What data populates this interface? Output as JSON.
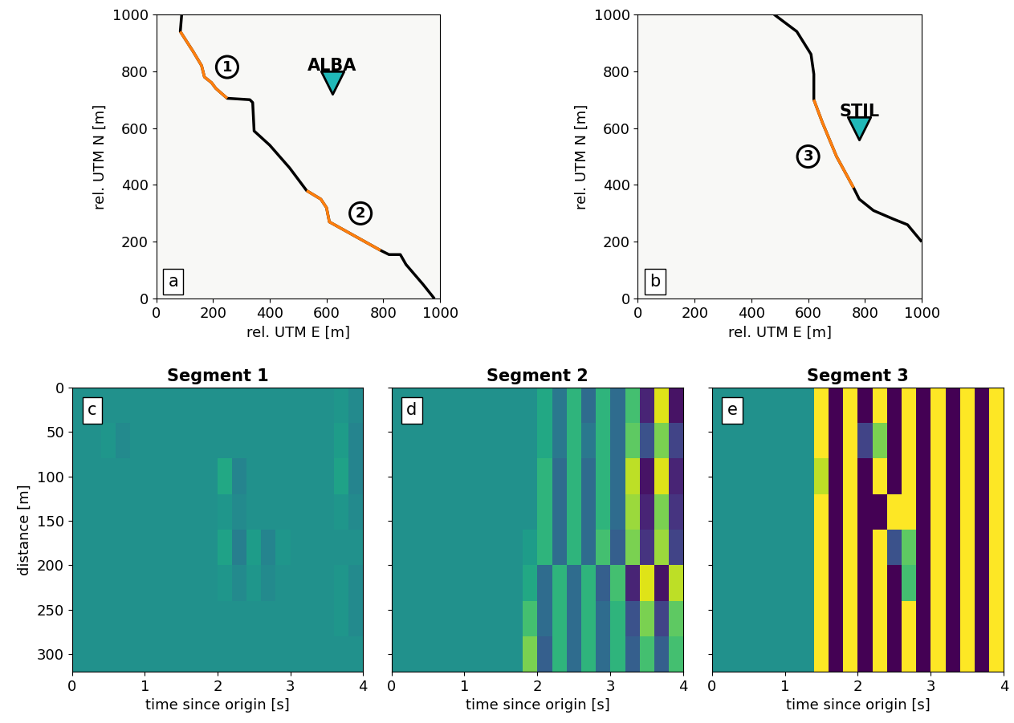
{
  "chart_data": [
    {
      "type": "map",
      "panel": "a",
      "xlabel": "rel. UTM E [m]",
      "ylabel": "rel. UTM N [m]",
      "xlim": [
        0,
        1000
      ],
      "ylim": [
        0,
        1000
      ],
      "xticks": [
        0,
        200,
        400,
        600,
        800,
        1000
      ],
      "yticks": [
        0,
        200,
        400,
        600,
        800,
        1000
      ],
      "series": [
        {
          "color": "#000000",
          "x": [
            90,
            85,
            130,
            160,
            170,
            195,
            210,
            250,
            330,
            340,
            345,
            400,
            470,
            530,
            580,
            600,
            610,
            700,
            790,
            820,
            860,
            880,
            940,
            980
          ],
          "y": [
            1000,
            940,
            870,
            820,
            780,
            760,
            740,
            705,
            700,
            690,
            590,
            540,
            460,
            380,
            350,
            320,
            270,
            220,
            170,
            155,
            155,
            120,
            50,
            0
          ]
        },
        {
          "color": "#ff7f0e",
          "x": [
            85,
            130,
            160,
            170,
            195,
            210,
            250
          ],
          "y": [
            940,
            870,
            820,
            780,
            760,
            740,
            705
          ]
        },
        {
          "color": "#ff7f0e",
          "x": [
            530,
            580,
            600,
            610,
            700,
            790
          ],
          "y": [
            380,
            350,
            320,
            270,
            220,
            170
          ]
        }
      ],
      "stations": [
        {
          "label": "ALBA",
          "x": 620,
          "y": 760,
          "color": "#20b8b8"
        }
      ],
      "segment_labels": [
        {
          "label": "1",
          "x": 250,
          "y": 815
        },
        {
          "label": "2",
          "x": 720,
          "y": 300
        }
      ]
    },
    {
      "type": "map",
      "panel": "b",
      "xlabel": "rel. UTM E [m]",
      "ylabel": "rel. UTM N [m]",
      "xlim": [
        0,
        1000
      ],
      "ylim": [
        0,
        1000
      ],
      "xticks": [
        0,
        200,
        400,
        600,
        800,
        1000
      ],
      "yticks": [
        0,
        200,
        400,
        600,
        800,
        1000
      ],
      "series": [
        {
          "color": "#000000",
          "x": [
            480,
            560,
            610,
            620,
            620,
            650,
            700,
            760,
            780,
            830,
            900,
            950,
            1000
          ],
          "y": [
            1000,
            940,
            860,
            790,
            700,
            620,
            500,
            390,
            350,
            310,
            280,
            260,
            200
          ]
        },
        {
          "color": "#ff7f0e",
          "x": [
            620,
            650,
            700,
            760
          ],
          "y": [
            700,
            620,
            500,
            390
          ]
        }
      ],
      "stations": [
        {
          "label": "STIL",
          "x": 780,
          "y": 600,
          "color": "#20b8b8"
        }
      ],
      "segment_labels": [
        {
          "label": "3",
          "x": 600,
          "y": 500
        }
      ]
    },
    {
      "type": "heatmap",
      "panel": "c",
      "title": "Segment 1",
      "xlabel": "time since origin [s]",
      "ylabel": "distance [m]",
      "xlim": [
        0,
        4
      ],
      "ylim": [
        320,
        0
      ],
      "xticks": [
        0,
        1,
        2,
        3,
        4
      ],
      "yticks": [
        0,
        50,
        100,
        150,
        200,
        250,
        300
      ],
      "x_edges": [
        0,
        0.2,
        0.4,
        0.6,
        0.8,
        1,
        1.2,
        1.4,
        1.6,
        1.8,
        2,
        2.2,
        2.4,
        2.6,
        2.8,
        3,
        3.2,
        3.4,
        3.6,
        3.8,
        4
      ],
      "y_edges": [
        0,
        40,
        80,
        120,
        160,
        200,
        240,
        280,
        320
      ],
      "clim": [
        -1,
        1
      ],
      "cells": [
        [
          0,
          0,
          0,
          0,
          0,
          0,
          0,
          0,
          0,
          0,
          0,
          0,
          0,
          0,
          0,
          0,
          0,
          0,
          0.05,
          -0.05
        ],
        [
          0,
          0,
          0.05,
          -0.05,
          0,
          0,
          0,
          0,
          0,
          0,
          0,
          0,
          0,
          0,
          0,
          0,
          0,
          0,
          0.1,
          -0.1
        ],
        [
          0,
          0,
          0,
          0,
          0,
          0,
          0,
          0,
          0,
          0,
          0.2,
          -0.1,
          0,
          0,
          0,
          0,
          0,
          0,
          0.15,
          -0.1
        ],
        [
          0,
          0,
          0,
          0,
          0,
          0,
          0,
          0,
          0,
          0,
          0.05,
          -0.05,
          0,
          0,
          0,
          0,
          0,
          0,
          0.05,
          -0.05
        ],
        [
          0,
          0,
          0,
          0,
          0,
          0,
          0,
          0,
          0,
          0,
          0.15,
          -0.15,
          0.1,
          -0.1,
          0.05,
          0,
          0,
          0,
          0,
          0
        ],
        [
          0,
          0,
          0,
          0,
          0,
          0,
          0,
          0,
          0,
          0,
          0.05,
          -0.05,
          0.05,
          -0.05,
          0,
          0,
          0,
          0,
          0.05,
          -0.05
        ],
        [
          0,
          0,
          0,
          0,
          0,
          0,
          0,
          0,
          0,
          0,
          0,
          0,
          0,
          0,
          0,
          0,
          0,
          0,
          0.05,
          -0.05
        ],
        [
          0,
          0,
          0,
          0,
          0,
          0,
          0,
          0,
          0,
          0,
          0,
          0,
          0,
          0,
          0,
          0,
          0,
          0,
          0,
          0
        ]
      ]
    },
    {
      "type": "heatmap",
      "panel": "d",
      "title": "Segment 2",
      "xlabel": "time since origin [s]",
      "tick_labels": "x",
      "xlim": [
        0,
        4
      ],
      "ylim": [
        320,
        0
      ],
      "xticks": [
        0,
        1,
        2,
        3,
        4
      ],
      "yticks": [
        0,
        50,
        100,
        150,
        200,
        250,
        300
      ],
      "x_edges": [
        0,
        0.2,
        0.4,
        0.6,
        0.8,
        1,
        1.2,
        1.4,
        1.6,
        1.8,
        2,
        2.2,
        2.4,
        2.6,
        2.8,
        3,
        3.2,
        3.4,
        3.6,
        3.8,
        4
      ],
      "y_edges": [
        0,
        40,
        80,
        120,
        160,
        200,
        240,
        280,
        320
      ],
      "clim": [
        -1,
        1
      ],
      "cells": [
        [
          0,
          0,
          0,
          0,
          0,
          0,
          0,
          0,
          0,
          0,
          0.2,
          -0.2,
          0.3,
          -0.3,
          0.3,
          -0.3,
          0.4,
          -0.8,
          0.9,
          -0.9
        ],
        [
          0,
          0,
          0,
          0,
          0,
          0,
          0,
          0,
          0,
          0,
          0.2,
          -0.2,
          0.3,
          -0.2,
          0.3,
          -0.3,
          0.5,
          -0.5,
          0.6,
          -0.6
        ],
        [
          0,
          0,
          0,
          0,
          0,
          0,
          0,
          0,
          0,
          0,
          0.3,
          -0.3,
          0.3,
          -0.3,
          0.3,
          -0.3,
          0.8,
          -0.9,
          0.9,
          -0.8
        ],
        [
          0,
          0,
          0,
          0,
          0,
          0,
          0,
          0,
          0,
          0,
          0.3,
          -0.3,
          0.3,
          -0.3,
          0.3,
          -0.3,
          0.7,
          -0.8,
          0.6,
          -0.7
        ],
        [
          0,
          0,
          0,
          0,
          0,
          0,
          0,
          0,
          0,
          0.1,
          0.3,
          -0.3,
          0.3,
          -0.3,
          0.4,
          -0.4,
          0.6,
          -0.7,
          0.7,
          -0.6
        ],
        [
          0,
          0,
          0,
          0,
          0,
          0,
          0,
          0,
          0,
          0.2,
          -0.3,
          0.3,
          -0.3,
          0.3,
          -0.4,
          0.4,
          -0.8,
          0.9,
          -0.9,
          0.8
        ],
        [
          0,
          0,
          0,
          0,
          0,
          0,
          0,
          0,
          0,
          0.4,
          -0.3,
          0.3,
          -0.3,
          0.3,
          -0.3,
          0.3,
          -0.5,
          0.6,
          -0.6,
          0.5
        ],
        [
          0,
          0,
          0,
          0,
          0,
          0,
          0,
          0,
          0,
          0.6,
          -0.4,
          0.3,
          -0.3,
          0.3,
          -0.3,
          0.3,
          -0.4,
          0.4,
          -0.4,
          0.4
        ]
      ]
    },
    {
      "type": "heatmap",
      "panel": "e",
      "title": "Segment 3",
      "xlabel": "time since origin [s]",
      "tick_labels": "x",
      "xlim": [
        0,
        4
      ],
      "ylim": [
        320,
        0
      ],
      "xticks": [
        0,
        1,
        2,
        3,
        4
      ],
      "yticks": [
        0,
        50,
        100,
        150,
        200,
        250,
        300
      ],
      "x_edges": [
        0,
        0.2,
        0.4,
        0.6,
        0.8,
        1,
        1.2,
        1.4,
        1.6,
        1.8,
        2,
        2.2,
        2.4,
        2.6,
        2.8,
        3,
        3.2,
        3.4,
        3.6,
        3.8,
        4
      ],
      "y_edges": [
        0,
        40,
        80,
        120,
        160,
        200,
        240,
        280,
        320
      ],
      "clim": [
        -1,
        1
      ],
      "cells": [
        [
          0,
          0,
          0,
          0,
          0,
          0,
          0,
          1,
          -1,
          1,
          -1,
          1,
          -1,
          1,
          -1,
          1,
          -1,
          1,
          -1,
          1
        ],
        [
          0,
          0,
          0,
          0,
          0,
          0,
          0,
          1,
          -1,
          1,
          -0.6,
          0.6,
          -1,
          1,
          -1,
          1,
          -1,
          1,
          -1,
          1
        ],
        [
          0,
          0,
          0,
          0,
          0,
          0,
          0,
          0.8,
          -1,
          1,
          -1,
          1,
          -1,
          1,
          -1,
          1,
          -1,
          1,
          -1,
          1
        ],
        [
          0,
          0,
          0,
          0,
          0,
          0,
          0,
          1,
          -1,
          1,
          -1,
          -1,
          1,
          1,
          -1,
          1,
          -1,
          1,
          -1,
          1
        ],
        [
          0,
          0,
          0,
          0,
          0,
          0,
          0,
          1,
          -1,
          1,
          -1,
          1,
          -0.5,
          0.5,
          -1,
          1,
          -1,
          1,
          -1,
          1
        ],
        [
          0,
          0,
          0,
          0,
          0,
          0,
          0,
          1,
          -1,
          1,
          -1,
          1,
          -1,
          0.4,
          -1,
          1,
          -1,
          1,
          -1,
          1
        ],
        [
          0,
          0,
          0,
          0,
          0,
          0,
          0,
          1,
          -1,
          1,
          -1,
          1,
          -1,
          1,
          -1,
          1,
          -1,
          1,
          -1,
          1
        ],
        [
          0,
          0,
          0,
          0,
          0,
          0,
          0,
          1,
          -1,
          1,
          -1,
          1,
          -1,
          1,
          -1,
          1,
          -1,
          1,
          -1,
          1
        ]
      ]
    }
  ]
}
